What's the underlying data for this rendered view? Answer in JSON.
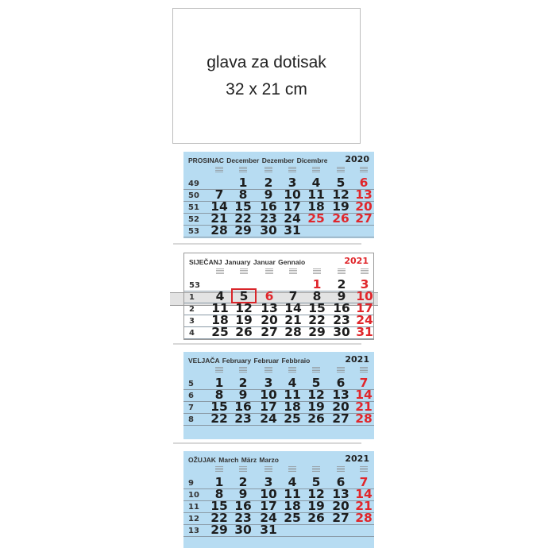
{
  "header_box": {
    "line1": "glava za dotisak",
    "line2": "32 x 21 cm"
  },
  "colors": {
    "panel_blue": "#b7dcf2",
    "holiday_red": "#e0262b",
    "today_box": "#d9252a"
  },
  "months": [
    {
      "title": "PROSINAC  December  Dezember  Dicembre",
      "year": "2020",
      "style": "blue",
      "year_red": false,
      "weeks": [
        {
          "wk": "49",
          "days": [
            "",
            "1",
            "2",
            "3",
            "4",
            "5",
            "6"
          ]
        },
        {
          "wk": "50",
          "days": [
            "7",
            "8",
            "9",
            "10",
            "11",
            "12",
            "13"
          ]
        },
        {
          "wk": "51",
          "days": [
            "14",
            "15",
            "16",
            "17",
            "18",
            "19",
            "20"
          ]
        },
        {
          "wk": "52",
          "days": [
            "21",
            "22",
            "23",
            "24",
            "25",
            "26",
            "27"
          ]
        },
        {
          "wk": "53",
          "days": [
            "28",
            "29",
            "30",
            "31",
            "",
            "",
            ""
          ]
        }
      ],
      "red": [
        "6",
        "13",
        "20",
        "25",
        "26",
        "27"
      ]
    },
    {
      "title": "SIJEČANJ  January  Januar  Gennaio",
      "year": "2021",
      "style": "white",
      "year_red": true,
      "today": "5",
      "weeks": [
        {
          "wk": "53",
          "days": [
            "",
            "",
            "",
            "",
            "1",
            "2",
            "3"
          ]
        },
        {
          "wk": "1",
          "days": [
            "4",
            "5",
            "6",
            "7",
            "8",
            "9",
            "10"
          ]
        },
        {
          "wk": "2",
          "days": [
            "11",
            "12",
            "13",
            "14",
            "15",
            "16",
            "17"
          ]
        },
        {
          "wk": "3",
          "days": [
            "18",
            "19",
            "20",
            "21",
            "22",
            "23",
            "24"
          ]
        },
        {
          "wk": "4",
          "days": [
            "25",
            "26",
            "27",
            "28",
            "29",
            "30",
            "31"
          ]
        }
      ],
      "red": [
        "1",
        "3",
        "6",
        "10",
        "17",
        "24",
        "31"
      ]
    },
    {
      "title": "VELJAČA  February  Februar  Febbraio",
      "year": "2021",
      "style": "blue",
      "year_red": false,
      "weeks": [
        {
          "wk": "5",
          "days": [
            "1",
            "2",
            "3",
            "4",
            "5",
            "6",
            "7"
          ]
        },
        {
          "wk": "6",
          "days": [
            "8",
            "9",
            "10",
            "11",
            "12",
            "13",
            "14"
          ]
        },
        {
          "wk": "7",
          "days": [
            "15",
            "16",
            "17",
            "18",
            "19",
            "20",
            "21"
          ]
        },
        {
          "wk": "8",
          "days": [
            "22",
            "23",
            "24",
            "25",
            "26",
            "27",
            "28"
          ]
        }
      ],
      "red": [
        "7",
        "14",
        "21",
        "28"
      ]
    },
    {
      "title": "OŽUJAK  March  März  Marzo",
      "year": "2021",
      "style": "blue",
      "year_red": false,
      "weeks": [
        {
          "wk": "9",
          "days": [
            "1",
            "2",
            "3",
            "4",
            "5",
            "6",
            "7"
          ]
        },
        {
          "wk": "10",
          "days": [
            "8",
            "9",
            "10",
            "11",
            "12",
            "13",
            "14"
          ]
        },
        {
          "wk": "11",
          "days": [
            "15",
            "16",
            "17",
            "18",
            "19",
            "20",
            "21"
          ]
        },
        {
          "wk": "12",
          "days": [
            "22",
            "23",
            "24",
            "25",
            "26",
            "27",
            "28"
          ]
        },
        {
          "wk": "13",
          "days": [
            "29",
            "30",
            "31",
            "",
            "",
            "",
            ""
          ]
        }
      ],
      "red": [
        "7",
        "14",
        "21",
        "28"
      ]
    }
  ]
}
